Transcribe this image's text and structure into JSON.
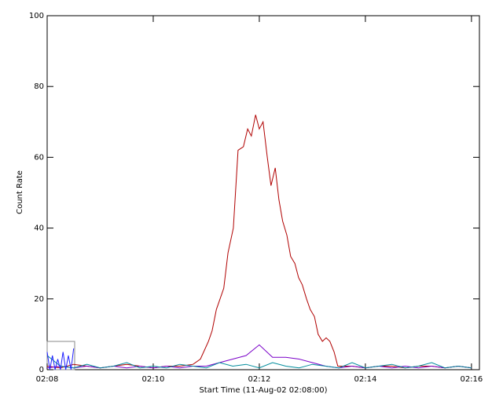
{
  "chart_data": {
    "type": "line",
    "xlabel": "Start Time (11-Aug-02 02:08:00)",
    "ylabel": "Count Rate",
    "xlim": [
      0,
      8.15
    ],
    "ylim": [
      0,
      100
    ],
    "xticks": [
      {
        "value": 0,
        "label": "02:08"
      },
      {
        "value": 2,
        "label": "02:10"
      },
      {
        "value": 4,
        "label": "02:12"
      },
      {
        "value": 6,
        "label": "02:14"
      },
      {
        "value": 8,
        "label": "02:16"
      }
    ],
    "yticks": [
      0,
      20,
      40,
      60,
      80,
      100
    ],
    "series": [
      {
        "color": "#b00000",
        "x": [
          0,
          0.25,
          0.5,
          0.75,
          1,
          1.25,
          1.5,
          1.75,
          2,
          2.25,
          2.5,
          2.75,
          2.89,
          3.04,
          3.11,
          3.19,
          3.33,
          3.41,
          3.51,
          3.6,
          3.7,
          3.78,
          3.85,
          3.93,
          4.0,
          4.07,
          4.15,
          4.22,
          4.3,
          4.37,
          4.44,
          4.52,
          4.59,
          4.67,
          4.74,
          4.81,
          4.89,
          4.96,
          5.04,
          5.11,
          5.19,
          5.26,
          5.33,
          5.41,
          5.48,
          5.75,
          6,
          6.25,
          6.5,
          6.75,
          7,
          7.25,
          7.5,
          7.75,
          8
        ],
        "values": [
          1,
          0.5,
          1.5,
          1,
          0.5,
          1,
          1.5,
          1,
          0.5,
          1,
          1,
          1.5,
          3,
          8,
          11,
          17,
          23,
          33,
          40,
          62,
          63,
          68,
          66,
          72,
          68,
          70,
          60,
          52,
          57,
          48,
          42,
          38,
          32,
          30,
          26,
          24,
          20,
          17,
          15,
          10,
          8,
          9,
          8,
          5,
          1,
          1,
          0.5,
          1,
          1,
          0.5,
          1,
          1,
          0.5,
          1,
          0.5
        ]
      },
      {
        "color": "#7a00c8",
        "x": [
          0,
          0.25,
          0.5,
          0.75,
          1,
          1.25,
          1.5,
          1.75,
          2,
          2.25,
          2.5,
          2.75,
          3,
          3.25,
          3.5,
          3.75,
          4,
          4.25,
          4.5,
          4.75,
          5,
          5.25,
          5.5,
          5.75,
          6,
          6.25,
          6.5,
          6.75,
          7,
          7.25,
          7.5,
          7.75,
          8
        ],
        "values": [
          0.5,
          1,
          0.5,
          1,
          0.5,
          1,
          0.5,
          1,
          0.5,
          1,
          0.5,
          1,
          1,
          2,
          3,
          4,
          7,
          3.5,
          3.5,
          3,
          2,
          1,
          0.5,
          1,
          0.5,
          1,
          0.5,
          1,
          0.5,
          1,
          0.5,
          1,
          0.5
        ]
      },
      {
        "color": "#008c9c",
        "x": [
          0,
          0.25,
          0.5,
          0.75,
          1,
          1.25,
          1.5,
          1.75,
          2,
          2.25,
          2.5,
          2.75,
          3,
          3.25,
          3.5,
          3.75,
          4,
          4.25,
          4.5,
          4.75,
          5,
          5.25,
          5.5,
          5.75,
          6,
          6.25,
          6.5,
          6.75,
          7,
          7.25,
          7.5,
          7.75,
          8
        ],
        "values": [
          4,
          1,
          0.5,
          1.5,
          0.5,
          1,
          2,
          0.5,
          1,
          0.5,
          1.5,
          1,
          0.5,
          2,
          1,
          1.5,
          0.5,
          2,
          1,
          0.5,
          1.5,
          1,
          0.5,
          2,
          0.5,
          1,
          1.5,
          0.5,
          1,
          2,
          0.5,
          1,
          0.5
        ]
      },
      {
        "color": "#2020ff",
        "x": [
          0,
          0.05,
          0.1,
          0.15,
          0.2,
          0.25,
          0.3,
          0.35,
          0.4,
          0.45,
          0.5
        ],
        "values": [
          5,
          0,
          4,
          0,
          3,
          0,
          5,
          0,
          4,
          0,
          6
        ]
      }
    ]
  }
}
